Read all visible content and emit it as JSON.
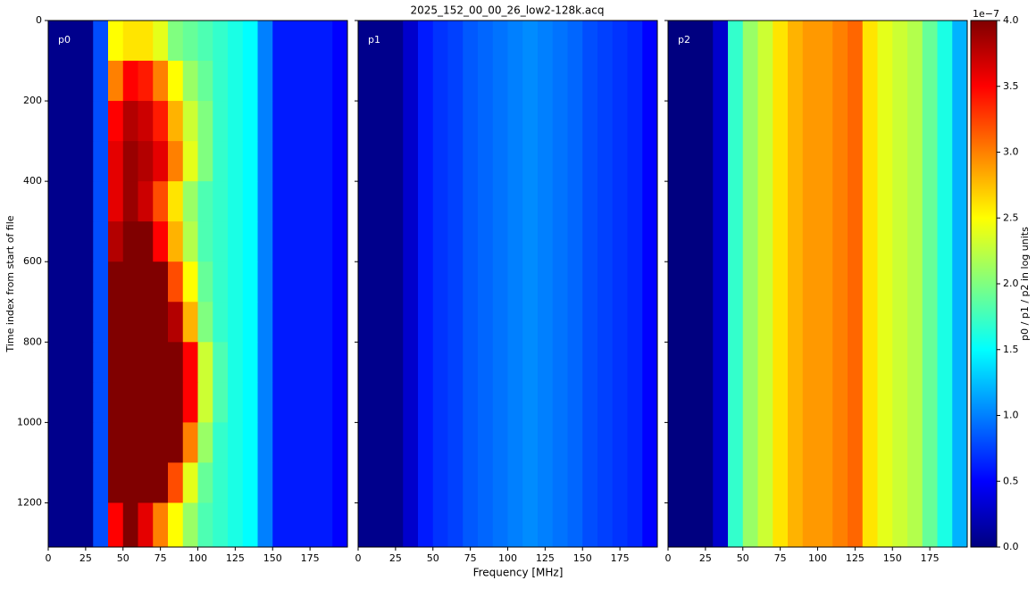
{
  "chart_data": {
    "type": "heatmap",
    "title": "2025_152_00_00_26_low2-128k.acq",
    "xlabel": "Frequency [MHz]",
    "ylabel": "Time index from start of file",
    "colormap": "jet",
    "xlim": [
      0,
      200
    ],
    "xticks": [
      0,
      25,
      50,
      75,
      100,
      125,
      150,
      175
    ],
    "ylim": [
      1310,
      0
    ],
    "yticks": [
      0,
      200,
      400,
      600,
      800,
      1000,
      1200
    ],
    "x_edges": [
      0,
      10,
      20,
      30,
      40,
      50,
      60,
      70,
      80,
      90,
      100,
      110,
      120,
      130,
      140,
      150,
      160,
      170,
      180,
      190,
      200
    ],
    "colorbar": {
      "label": "p0 / p1 / p2 in log units",
      "offset_label": "1e−7",
      "lim": [
        0,
        4
      ],
      "ticks": [
        {
          "value": 0,
          "label": "0.0"
        },
        0.5,
        {
          "value": 1,
          "label": "1.0"
        },
        1.5,
        {
          "value": 2,
          "label": "2.0"
        },
        2.5,
        {
          "value": 3,
          "label": "3.0"
        },
        3.5,
        {
          "value": 4,
          "label": "4.0"
        }
      ]
    },
    "panels": [
      {
        "name": "p0",
        "y_edges": [
          0,
          100,
          200,
          300,
          400,
          500,
          600,
          700,
          800,
          900,
          1000,
          1100,
          1200,
          1310
        ],
        "z": [
          [
            0.05,
            0.05,
            0.05,
            0.8,
            2.5,
            2.6,
            2.6,
            2.4,
            2.0,
            1.9,
            1.8,
            1.7,
            1.6,
            1.5,
            1.0,
            0.6,
            0.6,
            0.6,
            0.6,
            0.5
          ],
          [
            0.05,
            0.05,
            0.05,
            0.8,
            3.0,
            3.5,
            3.4,
            3.0,
            2.5,
            2.1,
            1.9,
            1.7,
            1.6,
            1.5,
            1.0,
            0.6,
            0.6,
            0.6,
            0.6,
            0.5
          ],
          [
            0.05,
            0.05,
            0.05,
            0.8,
            3.5,
            3.8,
            3.7,
            3.4,
            2.8,
            2.3,
            2.0,
            1.7,
            1.6,
            1.5,
            1.0,
            0.6,
            0.6,
            0.6,
            0.6,
            0.5
          ],
          [
            0.05,
            0.05,
            0.05,
            0.8,
            3.6,
            3.9,
            3.8,
            3.6,
            3.0,
            2.4,
            2.0,
            1.7,
            1.6,
            1.5,
            1.0,
            0.6,
            0.6,
            0.6,
            0.6,
            0.5
          ],
          [
            0.05,
            0.05,
            0.05,
            0.8,
            3.6,
            3.9,
            3.7,
            3.2,
            2.6,
            2.1,
            1.8,
            1.7,
            1.6,
            1.5,
            1.0,
            0.6,
            0.6,
            0.6,
            0.6,
            0.5
          ],
          [
            0.05,
            0.05,
            0.05,
            0.8,
            3.8,
            4,
            4,
            3.5,
            2.8,
            2.2,
            1.8,
            1.7,
            1.6,
            1.5,
            1.0,
            0.6,
            0.6,
            0.6,
            0.6,
            0.5
          ],
          [
            0.05,
            0.05,
            0.05,
            0.8,
            4,
            4,
            4,
            4,
            3.2,
            2.5,
            1.9,
            1.7,
            1.6,
            1.5,
            1.0,
            0.6,
            0.6,
            0.6,
            0.6,
            0.5
          ],
          [
            0.05,
            0.05,
            0.05,
            0.8,
            4,
            4,
            4,
            4,
            3.8,
            2.8,
            2.0,
            1.7,
            1.6,
            1.5,
            1.0,
            0.6,
            0.6,
            0.6,
            0.6,
            0.5
          ],
          [
            0.05,
            0.05,
            0.05,
            0.8,
            4,
            4,
            4,
            4,
            4,
            3.5,
            2.3,
            1.8,
            1.6,
            1.5,
            1.0,
            0.6,
            0.6,
            0.6,
            0.6,
            0.5
          ],
          [
            0.05,
            0.05,
            0.05,
            0.8,
            4,
            4,
            4,
            4,
            4,
            3.5,
            2.3,
            1.8,
            1.6,
            1.5,
            1.0,
            0.6,
            0.6,
            0.6,
            0.6,
            0.5
          ],
          [
            0.05,
            0.05,
            0.05,
            0.8,
            4,
            4,
            4,
            4,
            4,
            3.0,
            2.1,
            1.7,
            1.6,
            1.5,
            1.0,
            0.6,
            0.6,
            0.6,
            0.6,
            0.5
          ],
          [
            0.05,
            0.05,
            0.05,
            0.8,
            4,
            4,
            4,
            4,
            3.2,
            2.4,
            1.9,
            1.7,
            1.6,
            1.5,
            1.0,
            0.6,
            0.6,
            0.6,
            0.6,
            0.5
          ],
          [
            0.05,
            0.05,
            0.05,
            0.8,
            3.5,
            4,
            3.6,
            3.0,
            2.5,
            2.1,
            1.8,
            1.7,
            1.6,
            1.5,
            1.0,
            0.6,
            0.6,
            0.6,
            0.6,
            0.5
          ]
        ]
      },
      {
        "name": "p1",
        "y_edges": [
          0,
          1310
        ],
        "z": [
          [
            0.05,
            0.05,
            0.05,
            0.3,
            0.6,
            0.7,
            0.75,
            0.85,
            0.9,
            0.95,
            1.0,
            1.05,
            1.0,
            0.95,
            0.9,
            0.8,
            0.75,
            0.7,
            0.65,
            0.5
          ]
        ]
      },
      {
        "name": "p2",
        "y_edges": [
          0,
          1310
        ],
        "z": [
          [
            0,
            0,
            0,
            0.3,
            1.7,
            2.1,
            2.3,
            2.6,
            2.8,
            2.9,
            2.9,
            3.0,
            3.1,
            2.6,
            2.4,
            2.3,
            2.2,
            1.9,
            1.6,
            1.2
          ]
        ]
      }
    ]
  }
}
